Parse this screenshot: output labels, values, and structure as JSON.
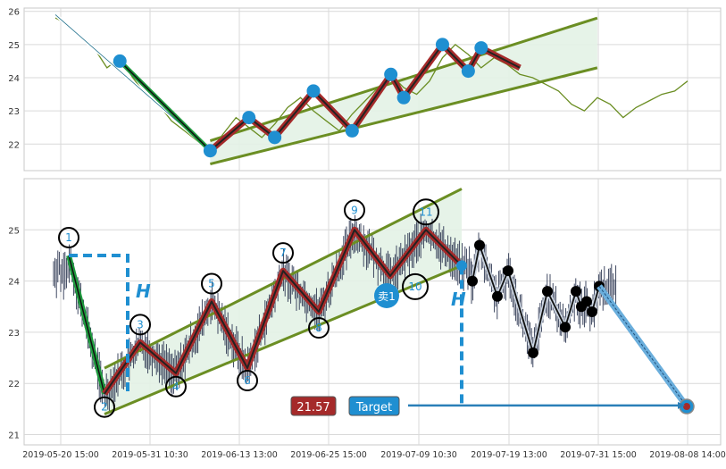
{
  "colors": {
    "panel_bg": "#ffffff",
    "grid": "#d9d9d9",
    "price_line_top": "#6b8e23",
    "channel_line": "#6b8e23",
    "channel_fill": "#e3f2e6",
    "wave_outer": "#a52a2a",
    "wave_inner": "#222222",
    "leg_green": "#1e9a3e",
    "marker_blue": "#1f8fd1",
    "candle": "#2b3550",
    "dashed_blue": "#1f8fd1",
    "target_box": "#1f8fd1",
    "value_box": "#a52a2a",
    "projection": "#6aaedc"
  },
  "chart_data": [
    {
      "type": "line",
      "panel": "top",
      "y_ticks": [
        "22",
        "23",
        "24",
        "25",
        "26"
      ],
      "ylim": [
        21.2,
        26.1
      ],
      "grid": true,
      "close_series": [
        [
          0,
          25.8
        ],
        [
          1,
          25.6
        ],
        [
          2,
          25.2
        ],
        [
          3,
          24.9
        ],
        [
          4,
          24.3
        ],
        [
          5,
          24.6
        ],
        [
          6,
          24.0
        ],
        [
          7,
          23.5
        ],
        [
          8,
          23.2
        ],
        [
          9,
          22.7
        ],
        [
          10,
          22.4
        ],
        [
          11,
          22.1
        ],
        [
          12,
          21.8
        ],
        [
          13,
          22.3
        ],
        [
          14,
          22.8
        ],
        [
          15,
          22.5
        ],
        [
          16,
          22.2
        ],
        [
          17,
          22.6
        ],
        [
          18,
          23.1
        ],
        [
          19,
          23.4
        ],
        [
          20,
          23.0
        ],
        [
          21,
          22.7
        ],
        [
          22,
          22.4
        ],
        [
          23,
          22.9
        ],
        [
          24,
          23.3
        ],
        [
          25,
          23.7
        ],
        [
          26,
          24.1
        ],
        [
          27,
          23.7
        ],
        [
          28,
          23.5
        ],
        [
          29,
          23.9
        ],
        [
          30,
          24.6
        ],
        [
          31,
          25.0
        ],
        [
          32,
          24.7
        ],
        [
          33,
          24.3
        ],
        [
          34,
          24.6
        ],
        [
          35,
          24.4
        ],
        [
          36,
          24.1
        ],
        [
          37,
          24.0
        ],
        [
          38,
          23.8
        ],
        [
          39,
          23.6
        ],
        [
          40,
          23.2
        ],
        [
          41,
          23.0
        ],
        [
          42,
          23.4
        ],
        [
          43,
          23.2
        ],
        [
          44,
          22.8
        ],
        [
          45,
          23.1
        ],
        [
          46,
          23.3
        ],
        [
          47,
          23.5
        ],
        [
          48,
          23.6
        ],
        [
          49,
          23.9
        ]
      ],
      "channel_upper": [
        [
          12,
          22.1
        ],
        [
          42,
          25.8
        ]
      ],
      "channel_lower": [
        [
          12,
          21.4
        ],
        [
          42,
          24.3
        ]
      ],
      "wave_points": [
        [
          12,
          21.8
        ],
        [
          15,
          22.8
        ],
        [
          17,
          22.2
        ],
        [
          20,
          23.6
        ],
        [
          23,
          22.4
        ],
        [
          26,
          24.1
        ],
        [
          27,
          23.4
        ],
        [
          30,
          25.0
        ],
        [
          32,
          24.2
        ],
        [
          33,
          24.9
        ],
        [
          36,
          24.3
        ]
      ],
      "blue_markers": [
        [
          5,
          24.5
        ],
        [
          12,
          21.8
        ],
        [
          15,
          22.8
        ],
        [
          17,
          22.2
        ],
        [
          20,
          23.6
        ],
        [
          23,
          22.4
        ],
        [
          26,
          24.1
        ],
        [
          27,
          23.4
        ],
        [
          30,
          25.0
        ],
        [
          32,
          24.2
        ],
        [
          33,
          24.9
        ]
      ],
      "green_leg": [
        [
          5,
          24.5
        ],
        [
          12,
          21.8
        ]
      ],
      "arrow": [
        [
          0,
          25.9
        ],
        [
          12,
          21.8
        ]
      ]
    },
    {
      "type": "candlestick",
      "panel": "bottom",
      "y_ticks": [
        "21",
        "22",
        "23",
        "24",
        "25"
      ],
      "ylim": [
        20.8,
        26.0
      ],
      "x_ticks": [
        "2019-05-20 15:00",
        "2019-05-31 10:30",
        "2019-06-13 13:00",
        "2019-06-25 15:00",
        "2019-07-09 10:30",
        "2019-07-19 13:00",
        "2019-07-31 15:00",
        "2019-08-08 14:00"
      ],
      "grid": true,
      "wave_labels": [
        "1",
        "2",
        "3",
        "4",
        "5",
        "6",
        "7",
        "8",
        "9",
        "10",
        "11"
      ],
      "wave_points": [
        [
          0,
          24.5
        ],
        [
          1,
          21.8
        ],
        [
          2,
          22.8
        ],
        [
          3,
          22.2
        ],
        [
          4,
          23.6
        ],
        [
          5,
          22.3
        ],
        [
          6,
          24.2
        ],
        [
          7,
          23.4
        ],
        [
          8,
          25.0
        ],
        [
          9,
          24.1
        ],
        [
          10,
          25.0
        ],
        [
          11,
          24.3
        ]
      ],
      "channel_upper": [
        [
          1,
          22.3
        ],
        [
          11,
          25.8
        ]
      ],
      "channel_lower": [
        [
          1,
          21.4
        ],
        [
          11,
          24.3
        ]
      ],
      "black_points": [
        [
          11.3,
          24.0
        ],
        [
          11.5,
          24.7
        ],
        [
          12.0,
          23.7
        ],
        [
          12.3,
          24.2
        ],
        [
          13.0,
          22.6
        ],
        [
          13.4,
          23.8
        ],
        [
          13.9,
          23.1
        ],
        [
          14.2,
          23.8
        ],
        [
          14.35,
          23.5
        ],
        [
          14.5,
          23.6
        ],
        [
          14.65,
          23.4
        ],
        [
          14.85,
          23.9
        ]
      ],
      "projection": [
        [
          14.85,
          23.9
        ],
        [
          17.3,
          21.55
        ]
      ],
      "annotations": {
        "h_left": "H",
        "h_right": "H",
        "sell_label": "卖1",
        "value_box": "21.57",
        "target_box": "Target"
      },
      "target_price": 21.57
    }
  ]
}
